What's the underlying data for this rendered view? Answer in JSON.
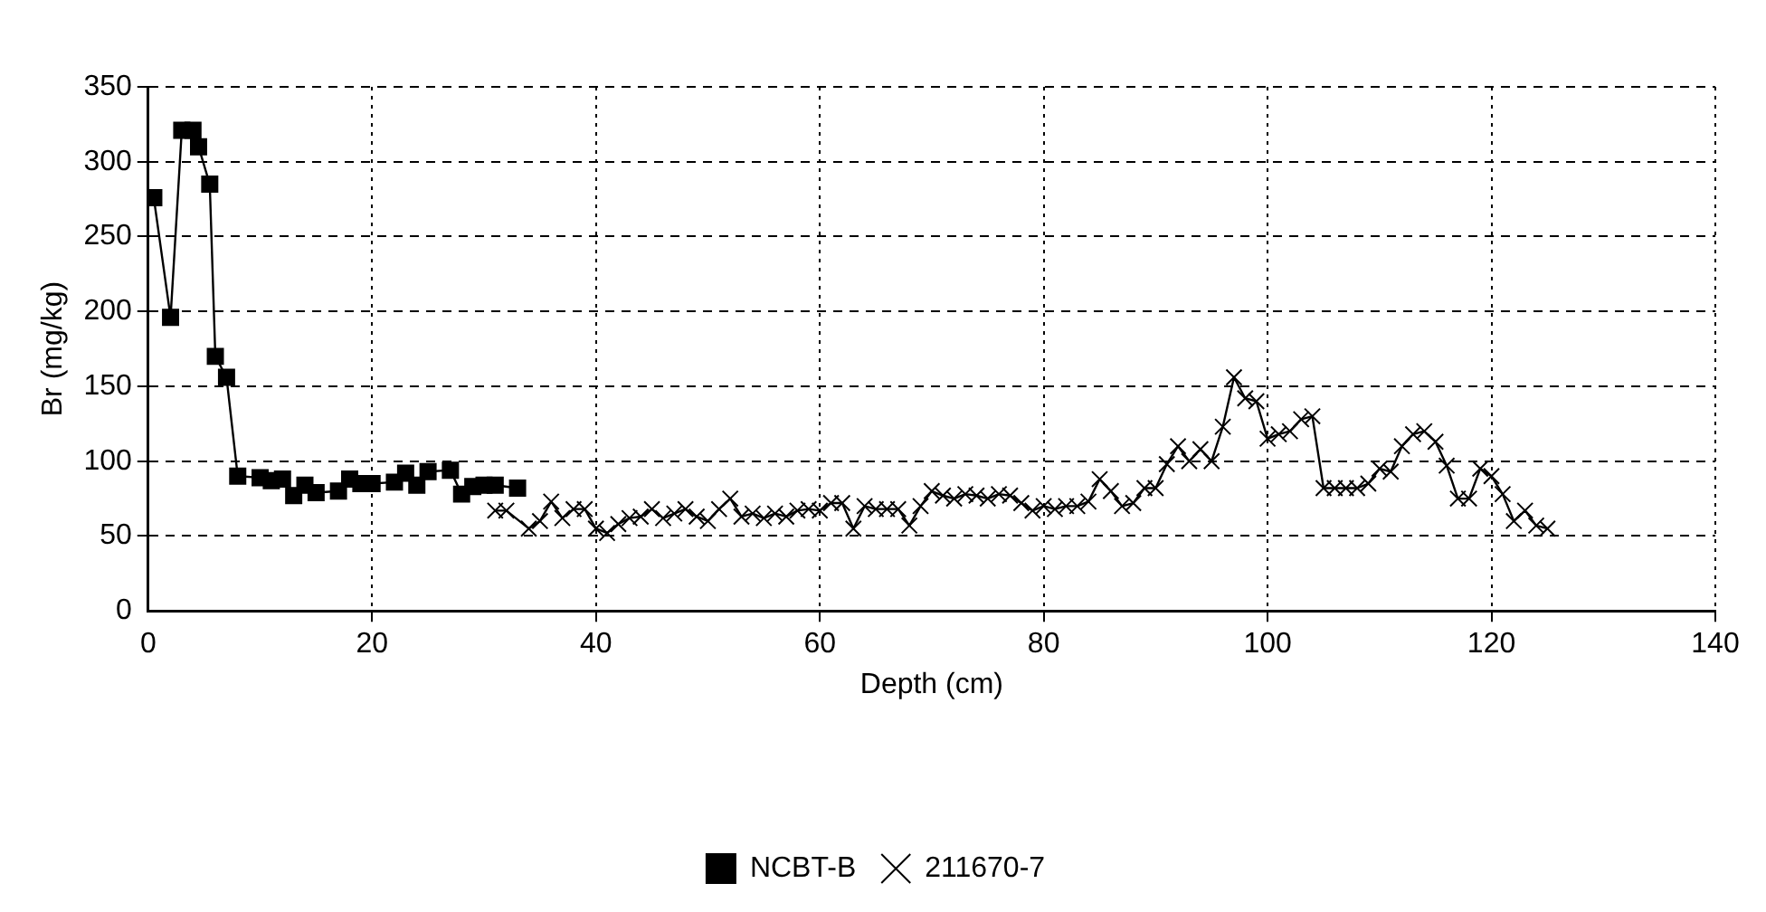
{
  "chart_data": {
    "type": "line",
    "xlabel": "Depth (cm)",
    "ylabel": "Br (mg/kg)",
    "xlim": [
      0,
      140
    ],
    "xticks": [
      0,
      20,
      40,
      60,
      80,
      100,
      120,
      140
    ],
    "ylim": [
      0,
      350
    ],
    "yticks": [
      0,
      50,
      100,
      150,
      200,
      250,
      300,
      350
    ],
    "grid": true,
    "legend": "bottom",
    "line_style": "solid",
    "series": [
      {
        "name": "NCBT-B",
        "color": "#000000",
        "marker": "square",
        "x": [
          0.5,
          2,
          3,
          4,
          4.5,
          5.5,
          6,
          7,
          8,
          10,
          11,
          12,
          13,
          14,
          15,
          17,
          18,
          19,
          20,
          22,
          23,
          24,
          25,
          27,
          28,
          29,
          30,
          31,
          33
        ],
        "values": [
          276,
          196,
          321,
          321,
          310,
          285,
          170,
          156,
          90,
          89,
          87,
          88,
          77,
          84,
          79,
          80,
          88,
          85,
          85,
          86,
          92,
          84,
          93,
          94,
          78,
          83,
          84,
          84,
          82
        ]
      },
      {
        "name": "211670-7",
        "color": "#000000",
        "marker": "cross",
        "x": [
          31,
          32,
          34,
          35,
          36,
          37,
          38,
          39,
          40,
          41,
          42,
          43,
          44,
          45,
          46,
          47,
          48,
          49,
          50,
          51,
          52,
          53,
          54,
          55,
          56,
          57,
          58,
          59,
          60,
          61,
          62,
          63,
          64,
          65,
          66,
          67,
          68,
          69,
          70,
          71,
          72,
          73,
          74,
          75,
          76,
          77,
          78,
          79,
          80,
          81,
          82,
          83,
          84,
          85,
          86,
          87,
          88,
          89,
          90,
          91,
          92,
          93,
          94,
          95,
          96,
          97,
          98,
          99,
          100,
          101,
          102,
          103,
          104,
          105,
          106,
          107,
          108,
          109,
          110,
          111,
          112,
          113,
          114,
          115,
          116,
          117,
          118,
          119,
          120,
          121,
          122,
          123,
          124,
          125
        ],
        "values": [
          67,
          67,
          55,
          60,
          73,
          62,
          68,
          68,
          55,
          52,
          58,
          62,
          63,
          68,
          62,
          65,
          68,
          63,
          60,
          68,
          75,
          63,
          65,
          62,
          65,
          63,
          67,
          68,
          67,
          72,
          72,
          55,
          70,
          68,
          68,
          68,
          57,
          70,
          80,
          77,
          75,
          78,
          77,
          75,
          78,
          77,
          72,
          67,
          70,
          68,
          70,
          70,
          73,
          88,
          80,
          70,
          72,
          82,
          82,
          98,
          110,
          100,
          108,
          100,
          123,
          156,
          142,
          140,
          115,
          118,
          120,
          128,
          130,
          82,
          82,
          82,
          82,
          85,
          95,
          93,
          110,
          118,
          120,
          113,
          97,
          75,
          75,
          95,
          90,
          78,
          60,
          67,
          57,
          55
        ]
      }
    ]
  }
}
